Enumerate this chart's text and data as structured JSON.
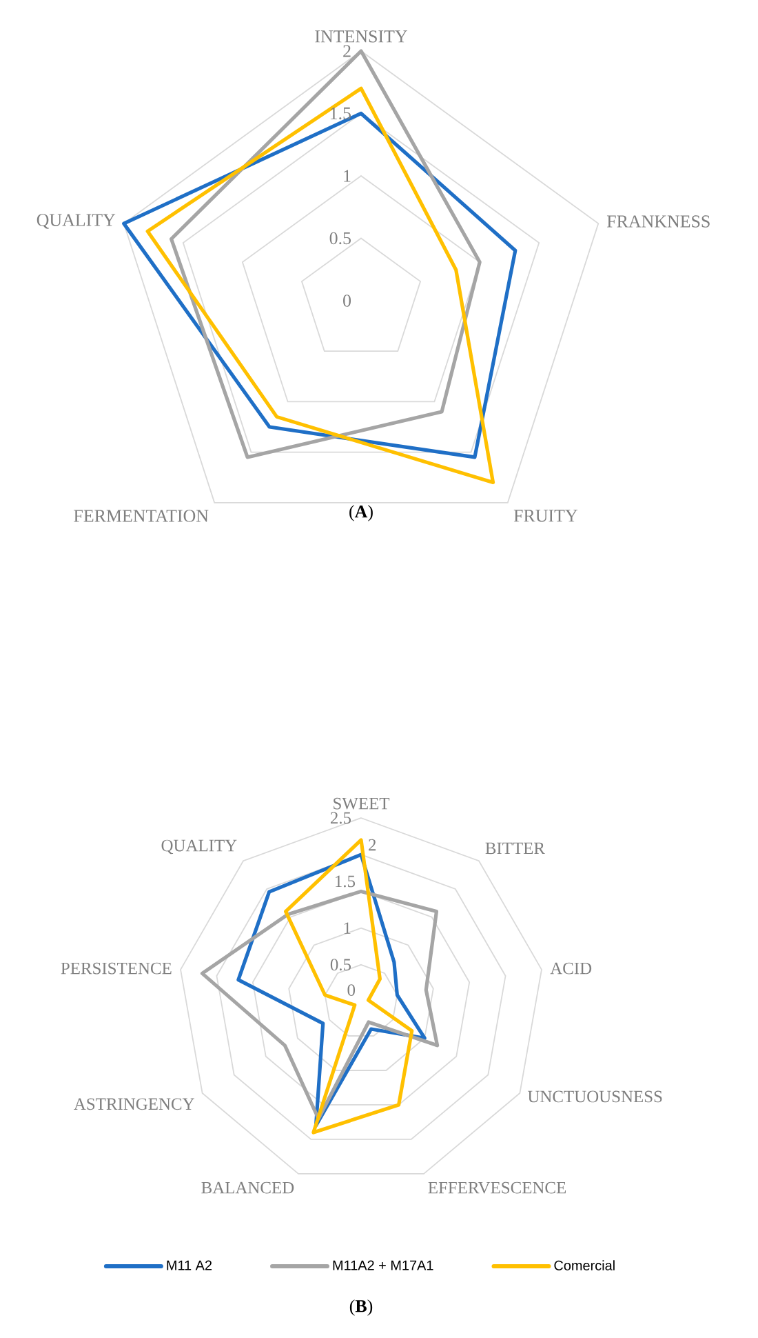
{
  "chart_data": [
    {
      "type": "radar",
      "categories": [
        "INTENSITY",
        "FRANKNESS",
        "FRUITY",
        "FERMENTATION",
        "QUALITY"
      ],
      "series": [
        {
          "color": "#1f6fc6",
          "values": [
            1.5,
            1.3,
            1.55,
            1.25,
            2.0
          ]
        },
        {
          "color": "#a5a5a5",
          "values": [
            2.0,
            1.0,
            1.1,
            1.55,
            1.6
          ]
        },
        {
          "color": "#ffc000",
          "values": [
            1.7,
            0.8,
            1.8,
            1.15,
            1.8
          ]
        }
      ],
      "ylim": [
        0,
        2
      ],
      "yticks": [
        0,
        0.5,
        1,
        1.5,
        2
      ],
      "grid": true,
      "annotations": [
        "(**A**)"
      ]
    },
    {
      "type": "radar",
      "categories": [
        "SWEET",
        "BITTER",
        "ACID",
        "UNCTUOUSNESS",
        "EFFERVESCENCE",
        "BALANCED",
        "ASTRINGENCY",
        "PERSISTENCE",
        "QUALITY"
      ],
      "series": [
        {
          "name": "M11 A2",
          "color": "#1f6fc6",
          "values": [
            2.0,
            0.7,
            0.5,
            1.0,
            0.4,
            1.8,
            0.6,
            1.7,
            1.95
          ]
        },
        {
          "name": "M11A2 + M17A1",
          "color": "#a5a5a5",
          "values": [
            1.5,
            1.6,
            0.9,
            1.2,
            0.3,
            1.7,
            1.2,
            2.2,
            1.55
          ]
        },
        {
          "name": "Comercial",
          "color": "#ffc000",
          "values": [
            2.2,
            0.4,
            0.1,
            0.8,
            1.5,
            1.9,
            0.1,
            0.5,
            1.6
          ]
        }
      ],
      "ylim": [
        0,
        2.5
      ],
      "yticks": [
        0,
        0.5,
        1,
        1.5,
        2,
        2.5
      ],
      "grid": true,
      "legend": "bottom",
      "annotations": [
        "(**B**)"
      ]
    }
  ]
}
